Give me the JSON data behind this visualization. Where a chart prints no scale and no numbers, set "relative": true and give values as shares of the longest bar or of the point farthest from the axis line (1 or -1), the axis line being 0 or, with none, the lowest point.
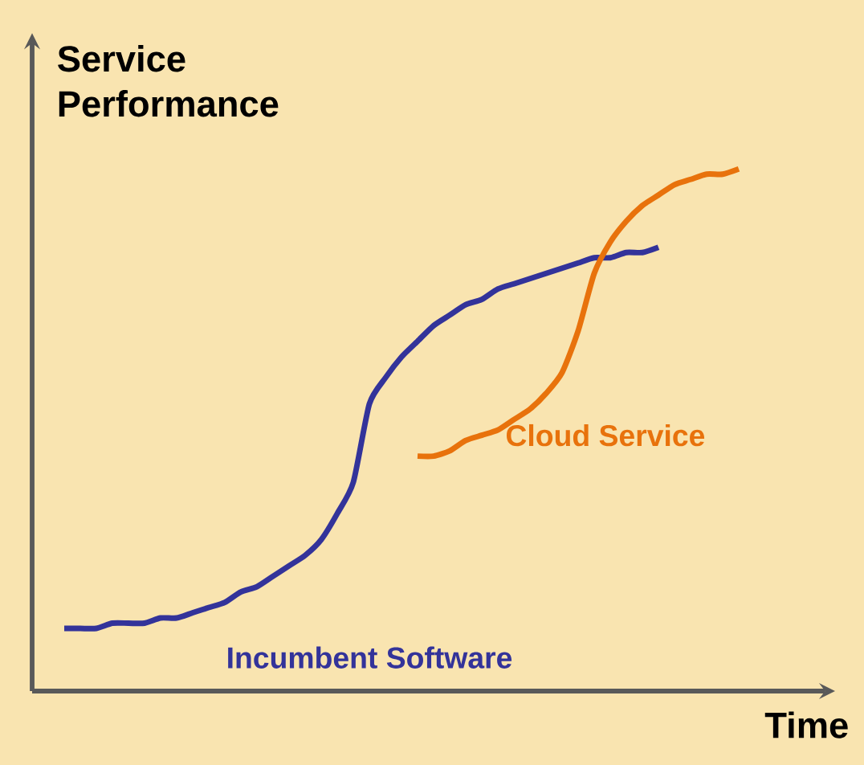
{
  "chart_data": {
    "type": "line",
    "relative": true,
    "xlabel": "Time",
    "ylabel": "Service Performance",
    "categories": [
      null,
      null,
      null,
      null,
      null,
      null,
      null,
      null,
      null,
      null,
      null,
      null,
      null,
      null,
      null,
      null,
      null,
      null,
      null,
      null,
      null,
      null,
      null,
      null,
      null,
      null,
      null,
      null,
      null,
      null,
      null,
      null,
      null,
      null,
      null,
      null,
      null,
      null,
      null,
      null,
      null,
      null,
      null
    ],
    "series": [
      {
        "name": "Incumbent Software",
        "color": "#33339a",
        "values": [
          0.12,
          0.12,
          0.12,
          0.13,
          0.13,
          0.13,
          0.14,
          0.14,
          0.15,
          0.16,
          0.17,
          0.19,
          0.2,
          0.22,
          0.24,
          0.26,
          0.29,
          0.34,
          0.4,
          0.55,
          0.6,
          0.64,
          0.67,
          0.7,
          0.72,
          0.74,
          0.75,
          0.77,
          0.78,
          0.79,
          0.8,
          0.81,
          0.82,
          0.83,
          0.83,
          0.84,
          0.84,
          0.85,
          null,
          null,
          null,
          null,
          null
        ]
      },
      {
        "name": "Cloud Service",
        "color": "#e8720c",
        "values": [
          null,
          null,
          null,
          null,
          null,
          null,
          null,
          null,
          null,
          null,
          null,
          null,
          null,
          null,
          null,
          null,
          null,
          null,
          null,
          null,
          null,
          null,
          0.45,
          0.45,
          0.46,
          0.48,
          0.49,
          0.5,
          0.52,
          0.54,
          0.57,
          0.61,
          0.69,
          0.8,
          0.86,
          0.9,
          0.93,
          0.95,
          0.97,
          0.98,
          0.99,
          0.99,
          1.0
        ]
      }
    ],
    "marker": "none",
    "line_style": "solid"
  }
}
